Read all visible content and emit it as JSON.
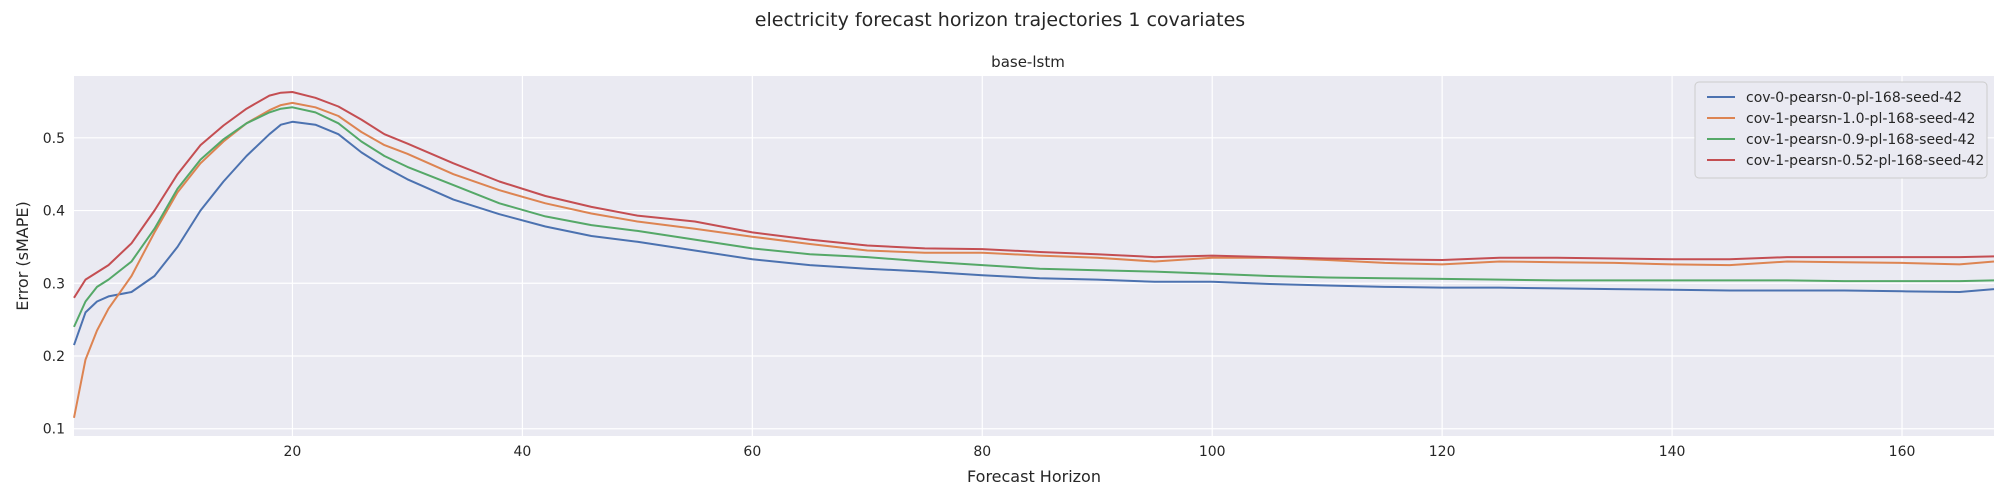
{
  "figure": {
    "suptitle": "electricity forecast horizon trajectories 1 covariates"
  },
  "colors": {
    "background": "#eaeaf2",
    "grid": "#ffffff"
  },
  "chart_data": {
    "type": "line",
    "title": "base-lstm",
    "xlabel": "Forecast Horizon",
    "ylabel": "Error (sMAPE)",
    "xlim": [
      1,
      168
    ],
    "ylim": [
      0.09,
      0.585
    ],
    "xticks": [
      20,
      40,
      60,
      80,
      100,
      120,
      140,
      160
    ],
    "yticks": [
      0.1,
      0.2,
      0.3,
      0.4,
      0.5
    ],
    "grid": true,
    "legend_position": "top-right",
    "series": [
      {
        "name": "cov-0-pearsn-0-pl-168-seed-42",
        "color": "#4c72b0",
        "points": [
          [
            1,
            0.215
          ],
          [
            2,
            0.26
          ],
          [
            3,
            0.275
          ],
          [
            4,
            0.282
          ],
          [
            6,
            0.288
          ],
          [
            8,
            0.31
          ],
          [
            10,
            0.35
          ],
          [
            12,
            0.4
          ],
          [
            14,
            0.44
          ],
          [
            16,
            0.475
          ],
          [
            18,
            0.505
          ],
          [
            19,
            0.518
          ],
          [
            20,
            0.522
          ],
          [
            22,
            0.518
          ],
          [
            24,
            0.505
          ],
          [
            26,
            0.48
          ],
          [
            28,
            0.46
          ],
          [
            30,
            0.443
          ],
          [
            34,
            0.415
          ],
          [
            38,
            0.395
          ],
          [
            42,
            0.378
          ],
          [
            46,
            0.365
          ],
          [
            50,
            0.357
          ],
          [
            55,
            0.345
          ],
          [
            60,
            0.333
          ],
          [
            65,
            0.325
          ],
          [
            70,
            0.32
          ],
          [
            75,
            0.316
          ],
          [
            80,
            0.311
          ],
          [
            85,
            0.307
          ],
          [
            90,
            0.305
          ],
          [
            95,
            0.302
          ],
          [
            100,
            0.302
          ],
          [
            105,
            0.299
          ],
          [
            110,
            0.297
          ],
          [
            115,
            0.295
          ],
          [
            120,
            0.294
          ],
          [
            125,
            0.294
          ],
          [
            130,
            0.293
          ],
          [
            135,
            0.292
          ],
          [
            140,
            0.291
          ],
          [
            145,
            0.29
          ],
          [
            150,
            0.29
          ],
          [
            155,
            0.29
          ],
          [
            160,
            0.289
          ],
          [
            165,
            0.288
          ],
          [
            168,
            0.292
          ]
        ]
      },
      {
        "name": "cov-1-pearsn-1.0-pl-168-seed-42",
        "color": "#dd8452",
        "points": [
          [
            1,
            0.115
          ],
          [
            2,
            0.195
          ],
          [
            3,
            0.235
          ],
          [
            4,
            0.265
          ],
          [
            6,
            0.31
          ],
          [
            8,
            0.37
          ],
          [
            10,
            0.425
          ],
          [
            12,
            0.465
          ],
          [
            14,
            0.495
          ],
          [
            16,
            0.52
          ],
          [
            18,
            0.538
          ],
          [
            19,
            0.545
          ],
          [
            20,
            0.548
          ],
          [
            22,
            0.542
          ],
          [
            24,
            0.53
          ],
          [
            26,
            0.508
          ],
          [
            28,
            0.49
          ],
          [
            30,
            0.478
          ],
          [
            34,
            0.45
          ],
          [
            38,
            0.428
          ],
          [
            42,
            0.41
          ],
          [
            46,
            0.396
          ],
          [
            50,
            0.385
          ],
          [
            55,
            0.375
          ],
          [
            60,
            0.364
          ],
          [
            65,
            0.354
          ],
          [
            70,
            0.345
          ],
          [
            75,
            0.342
          ],
          [
            80,
            0.342
          ],
          [
            85,
            0.338
          ],
          [
            90,
            0.335
          ],
          [
            95,
            0.33
          ],
          [
            100,
            0.335
          ],
          [
            105,
            0.335
          ],
          [
            110,
            0.332
          ],
          [
            115,
            0.328
          ],
          [
            120,
            0.326
          ],
          [
            125,
            0.33
          ],
          [
            130,
            0.329
          ],
          [
            135,
            0.328
          ],
          [
            140,
            0.326
          ],
          [
            145,
            0.325
          ],
          [
            150,
            0.33
          ],
          [
            155,
            0.329
          ],
          [
            160,
            0.328
          ],
          [
            165,
            0.326
          ],
          [
            168,
            0.33
          ]
        ]
      },
      {
        "name": "cov-1-pearsn-0.9-pl-168-seed-42",
        "color": "#55a868",
        "points": [
          [
            1,
            0.24
          ],
          [
            2,
            0.275
          ],
          [
            3,
            0.295
          ],
          [
            4,
            0.305
          ],
          [
            6,
            0.33
          ],
          [
            8,
            0.375
          ],
          [
            10,
            0.43
          ],
          [
            12,
            0.47
          ],
          [
            14,
            0.498
          ],
          [
            16,
            0.52
          ],
          [
            18,
            0.535
          ],
          [
            19,
            0.54
          ],
          [
            20,
            0.542
          ],
          [
            22,
            0.535
          ],
          [
            24,
            0.52
          ],
          [
            26,
            0.495
          ],
          [
            28,
            0.475
          ],
          [
            30,
            0.46
          ],
          [
            34,
            0.435
          ],
          [
            38,
            0.41
          ],
          [
            42,
            0.392
          ],
          [
            46,
            0.38
          ],
          [
            50,
            0.372
          ],
          [
            55,
            0.36
          ],
          [
            60,
            0.348
          ],
          [
            65,
            0.34
          ],
          [
            70,
            0.336
          ],
          [
            75,
            0.33
          ],
          [
            80,
            0.325
          ],
          [
            85,
            0.32
          ],
          [
            90,
            0.318
          ],
          [
            95,
            0.316
          ],
          [
            100,
            0.313
          ],
          [
            105,
            0.31
          ],
          [
            110,
            0.308
          ],
          [
            115,
            0.307
          ],
          [
            120,
            0.306
          ],
          [
            125,
            0.305
          ],
          [
            130,
            0.304
          ],
          [
            135,
            0.304
          ],
          [
            140,
            0.304
          ],
          [
            145,
            0.304
          ],
          [
            150,
            0.304
          ],
          [
            155,
            0.303
          ],
          [
            160,
            0.303
          ],
          [
            165,
            0.303
          ],
          [
            168,
            0.304
          ]
        ]
      },
      {
        "name": "cov-1-pearsn-0.52-pl-168-seed-42",
        "color": "#c44e52",
        "points": [
          [
            1,
            0.28
          ],
          [
            2,
            0.305
          ],
          [
            3,
            0.315
          ],
          [
            4,
            0.325
          ],
          [
            6,
            0.355
          ],
          [
            8,
            0.4
          ],
          [
            10,
            0.45
          ],
          [
            12,
            0.49
          ],
          [
            14,
            0.517
          ],
          [
            16,
            0.54
          ],
          [
            18,
            0.558
          ],
          [
            19,
            0.562
          ],
          [
            20,
            0.563
          ],
          [
            22,
            0.555
          ],
          [
            24,
            0.543
          ],
          [
            26,
            0.525
          ],
          [
            28,
            0.505
          ],
          [
            30,
            0.492
          ],
          [
            34,
            0.465
          ],
          [
            38,
            0.44
          ],
          [
            42,
            0.42
          ],
          [
            46,
            0.405
          ],
          [
            50,
            0.393
          ],
          [
            55,
            0.385
          ],
          [
            60,
            0.37
          ],
          [
            65,
            0.36
          ],
          [
            70,
            0.352
          ],
          [
            75,
            0.348
          ],
          [
            80,
            0.347
          ],
          [
            85,
            0.343
          ],
          [
            90,
            0.34
          ],
          [
            95,
            0.336
          ],
          [
            100,
            0.338
          ],
          [
            105,
            0.336
          ],
          [
            110,
            0.334
          ],
          [
            115,
            0.333
          ],
          [
            120,
            0.332
          ],
          [
            125,
            0.335
          ],
          [
            130,
            0.335
          ],
          [
            135,
            0.334
          ],
          [
            140,
            0.333
          ],
          [
            145,
            0.333
          ],
          [
            150,
            0.336
          ],
          [
            155,
            0.336
          ],
          [
            160,
            0.336
          ],
          [
            165,
            0.336
          ],
          [
            168,
            0.337
          ]
        ]
      }
    ]
  }
}
